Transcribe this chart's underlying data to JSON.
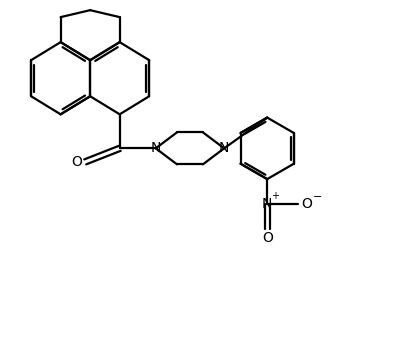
{
  "background_color": "#ffffff",
  "line_color": "#000000",
  "line_width": 1.6,
  "figsize": [
    3.96,
    3.5
  ],
  "dpi": 100,
  "atoms": {
    "N_label": "N",
    "O_label": "O"
  },
  "nitro": {
    "N_label": "N",
    "plus": "+",
    "minus": "-"
  }
}
